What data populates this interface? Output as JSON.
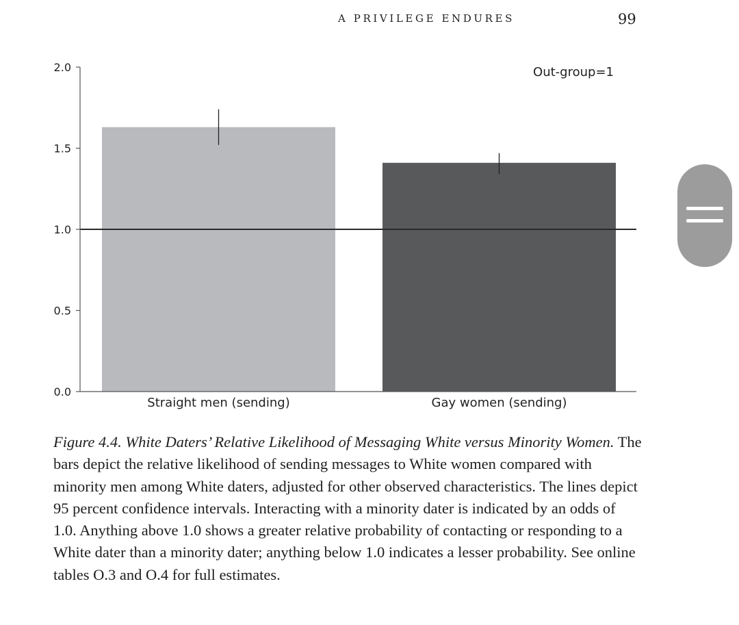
{
  "header": {
    "running_head": "A PRIVILEGE ENDURES",
    "page_number": "99"
  },
  "chart_data": {
    "type": "bar",
    "categories": [
      "Straight men (sending)",
      "Gay women (sending)"
    ],
    "values": [
      1.63,
      1.41
    ],
    "error_bars": [
      {
        "low": 1.52,
        "high": 1.74
      },
      {
        "low": 1.34,
        "high": 1.47
      }
    ],
    "bar_colors": [
      "#b9babd",
      "#58595b"
    ],
    "yticks": [
      "0.0",
      "0.5",
      "1.0",
      "1.5",
      "2.0"
    ],
    "ylim": [
      0,
      2.0
    ],
    "reference_line": 1.0,
    "annotation": "Out-group=1",
    "title": "",
    "xlabel": "",
    "ylabel": "",
    "grid": false
  },
  "caption": {
    "lead": "Figure 4.4. White Daters’ Relative Likelihood of Messaging White versus Minority Women.",
    "body": " The bars depict the relative likelihood of sending messages to White women compared with minority men among White daters, adjusted for other observed characteristics. The lines depict 95 percent confidence intervals. Interacting with a minority dater is indicated by an odds of 1.0. Anything above 1.0 shows a greater relative probability of contacting or responding to a White dater than a minority dater; anything below 1.0 indicates a lesser probability. See online tables O.3 and O.4 for full estimates."
  },
  "scroll_handle": {
    "icon": "drag-handle-icon"
  }
}
